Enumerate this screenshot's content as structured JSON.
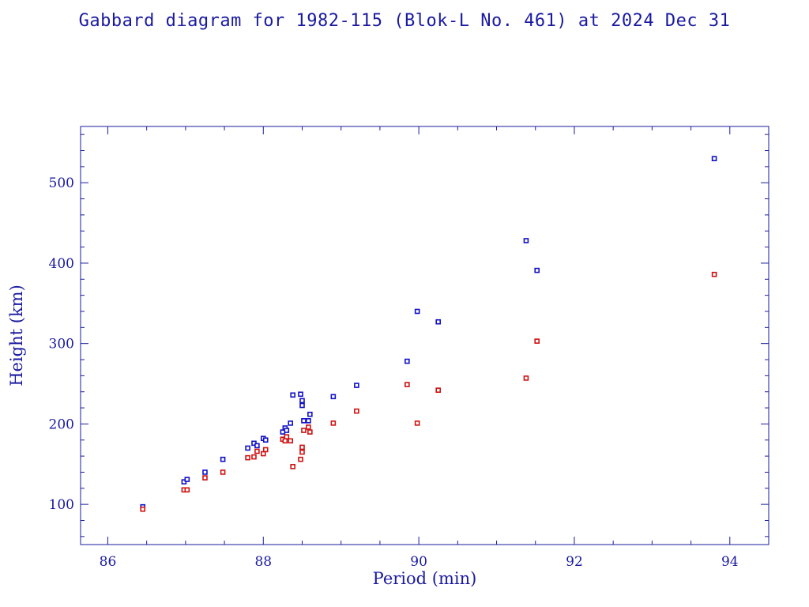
{
  "chart_data": {
    "type": "scatter",
    "title": "Gabbard diagram for 1982-115 (Blok-L No. 461) at 2024 Dec 31",
    "xlabel": "Period (min)",
    "ylabel": "Height (km)",
    "xlim": [
      85.65,
      94.5
    ],
    "ylim": [
      50,
      570
    ],
    "xticks": [
      86,
      88,
      90,
      92,
      94
    ],
    "yticks": [
      100,
      200,
      300,
      400,
      500
    ],
    "xtick_labels": [
      "86",
      "88",
      "90",
      "92",
      "94"
    ],
    "ytick_labels": [
      "100",
      "200",
      "300",
      "400",
      "500"
    ],
    "grid": false,
    "colors": {
      "axis": "#1a1aa0",
      "apogee": "#1010c8",
      "perigee": "#d01010"
    },
    "series": [
      {
        "role": "apogee",
        "color": "#1010c8",
        "points": [
          [
            86.45,
            97
          ],
          [
            86.98,
            128
          ],
          [
            87.02,
            131
          ],
          [
            87.25,
            140
          ],
          [
            87.48,
            156
          ],
          [
            87.8,
            170
          ],
          [
            87.88,
            176
          ],
          [
            87.92,
            173
          ],
          [
            88.0,
            182
          ],
          [
            88.03,
            180
          ],
          [
            88.25,
            190
          ],
          [
            88.28,
            195
          ],
          [
            88.3,
            192
          ],
          [
            88.35,
            201
          ],
          [
            88.38,
            236
          ],
          [
            88.48,
            237
          ],
          [
            88.5,
            223
          ],
          [
            88.5,
            229
          ],
          [
            88.52,
            204
          ],
          [
            88.58,
            204
          ],
          [
            88.6,
            212
          ],
          [
            88.9,
            234
          ],
          [
            89.2,
            248
          ],
          [
            89.85,
            278
          ],
          [
            89.98,
            340
          ],
          [
            90.25,
            327
          ],
          [
            91.38,
            428
          ],
          [
            91.52,
            391
          ],
          [
            93.8,
            530
          ]
        ]
      },
      {
        "role": "perigee",
        "color": "#d01010",
        "points": [
          [
            86.45,
            94
          ],
          [
            86.98,
            118
          ],
          [
            87.02,
            118
          ],
          [
            87.25,
            133
          ],
          [
            87.48,
            140
          ],
          [
            87.8,
            158
          ],
          [
            87.88,
            159
          ],
          [
            87.92,
            166
          ],
          [
            88.0,
            163
          ],
          [
            88.03,
            168
          ],
          [
            88.25,
            181
          ],
          [
            88.28,
            179
          ],
          [
            88.3,
            184
          ],
          [
            88.35,
            179
          ],
          [
            88.38,
            147
          ],
          [
            88.48,
            156
          ],
          [
            88.5,
            171
          ],
          [
            88.5,
            165
          ],
          [
            88.52,
            192
          ],
          [
            88.58,
            196
          ],
          [
            88.6,
            190
          ],
          [
            88.9,
            201
          ],
          [
            89.2,
            216
          ],
          [
            89.85,
            249
          ],
          [
            89.98,
            201
          ],
          [
            90.25,
            242
          ],
          [
            91.38,
            257
          ],
          [
            91.52,
            303
          ],
          [
            93.8,
            386
          ]
        ]
      }
    ]
  }
}
